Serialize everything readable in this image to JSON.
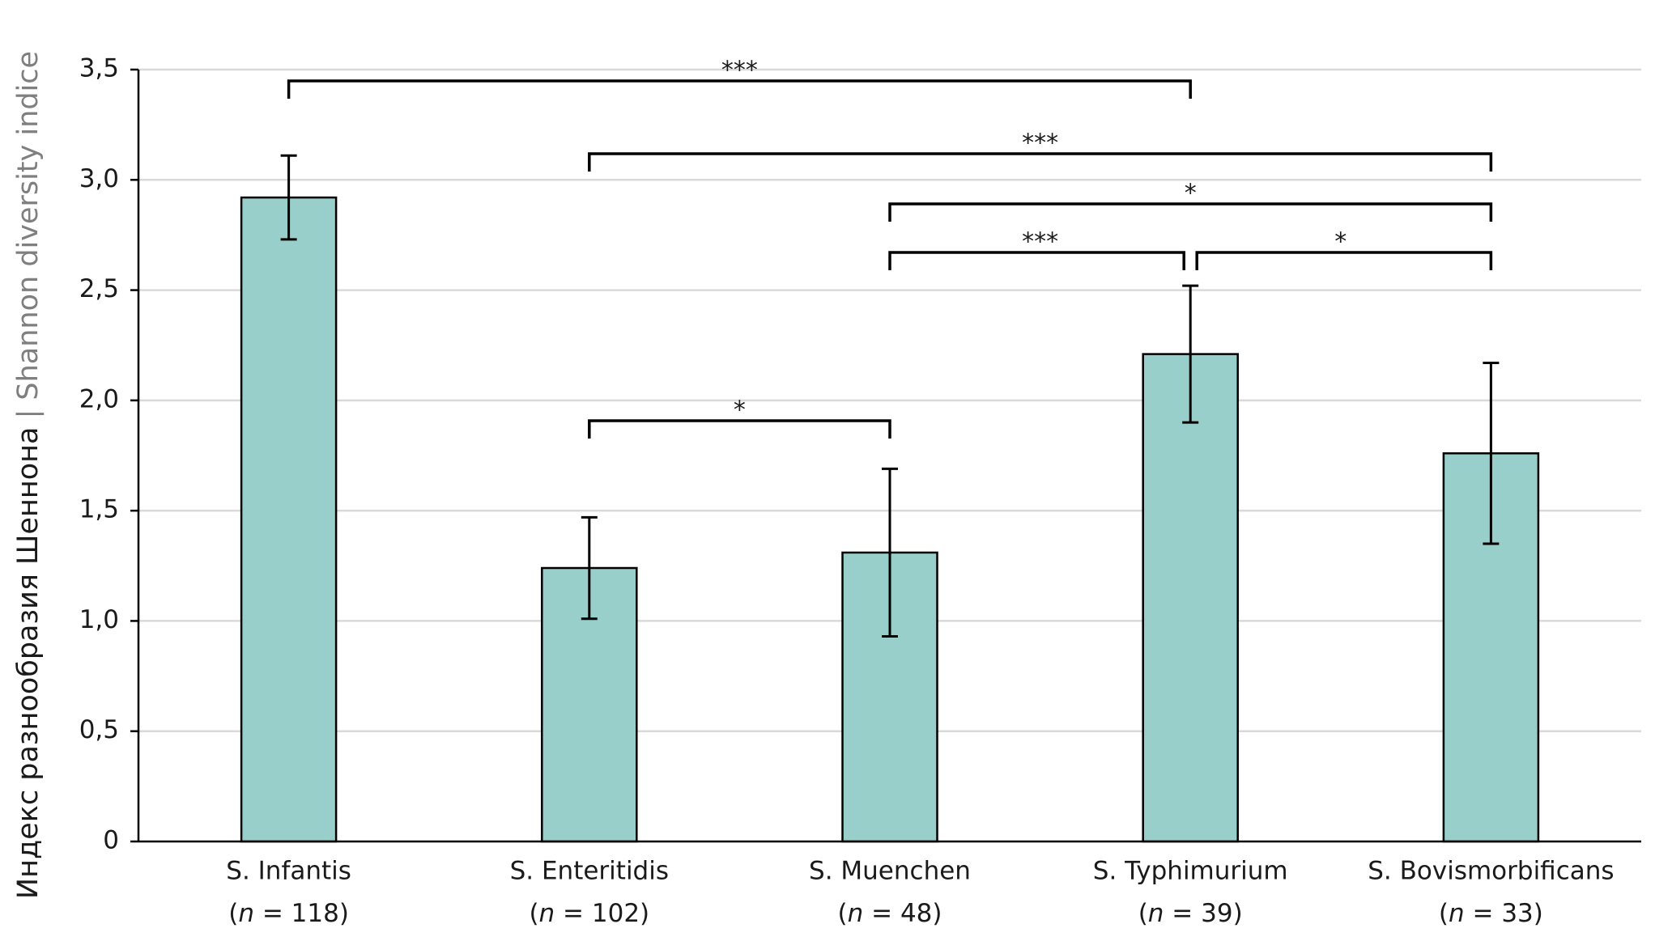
{
  "chart_data": {
    "type": "bar",
    "y_label": "Индекс разнообразия Шеннона",
    "y_label_en": "| Shannon diversity indice",
    "categories": [
      "S. Infantis",
      "S. Enteritidis",
      "S. Muenchen",
      "S. Typhimurium",
      "S. Bovismorbificans"
    ],
    "sample_sizes": [
      "(n = 118)",
      "(n = 102)",
      "(n = 48)",
      "(n = 39)",
      "(n = 33)"
    ],
    "values": [
      2.92,
      1.24,
      1.31,
      2.21,
      1.76
    ],
    "errors": [
      0.19,
      0.23,
      0.38,
      0.31,
      0.41
    ],
    "color": "#99cfca",
    "ylim": [
      0,
      3.5
    ],
    "yticks": [
      0,
      {
        "value": 0.5,
        "label": "0,5"
      },
      {
        "value": 1,
        "label": "1,0"
      },
      {
        "value": 1.5,
        "label": "1,5"
      },
      {
        "value": 2,
        "label": "2,0"
      },
      {
        "value": 2.5,
        "label": "2,5"
      },
      {
        "value": 3,
        "label": "3,0"
      },
      {
        "value": 3.5,
        "label": "3,5"
      }
    ],
    "grid": true,
    "significance": [
      {
        "groups": [
          "S. Infantis",
          "S. Typhimurium"
        ],
        "label": "***"
      },
      {
        "groups": [
          "S. Enteritidis",
          "S. Bovismorbificans"
        ],
        "label": "***"
      },
      {
        "groups": [
          "S. Muenchen",
          "S. Bovismorbificans"
        ],
        "label": "*"
      },
      {
        "groups": [
          "S. Muenchen",
          "S. Typhimurium"
        ],
        "label": "***"
      },
      {
        "groups": [
          "S. Typhimurium",
          "S. Bovismorbificans"
        ],
        "label": "*"
      },
      {
        "groups": [
          "S. Enteritidis",
          "S. Muenchen"
        ],
        "label": "*"
      }
    ]
  }
}
